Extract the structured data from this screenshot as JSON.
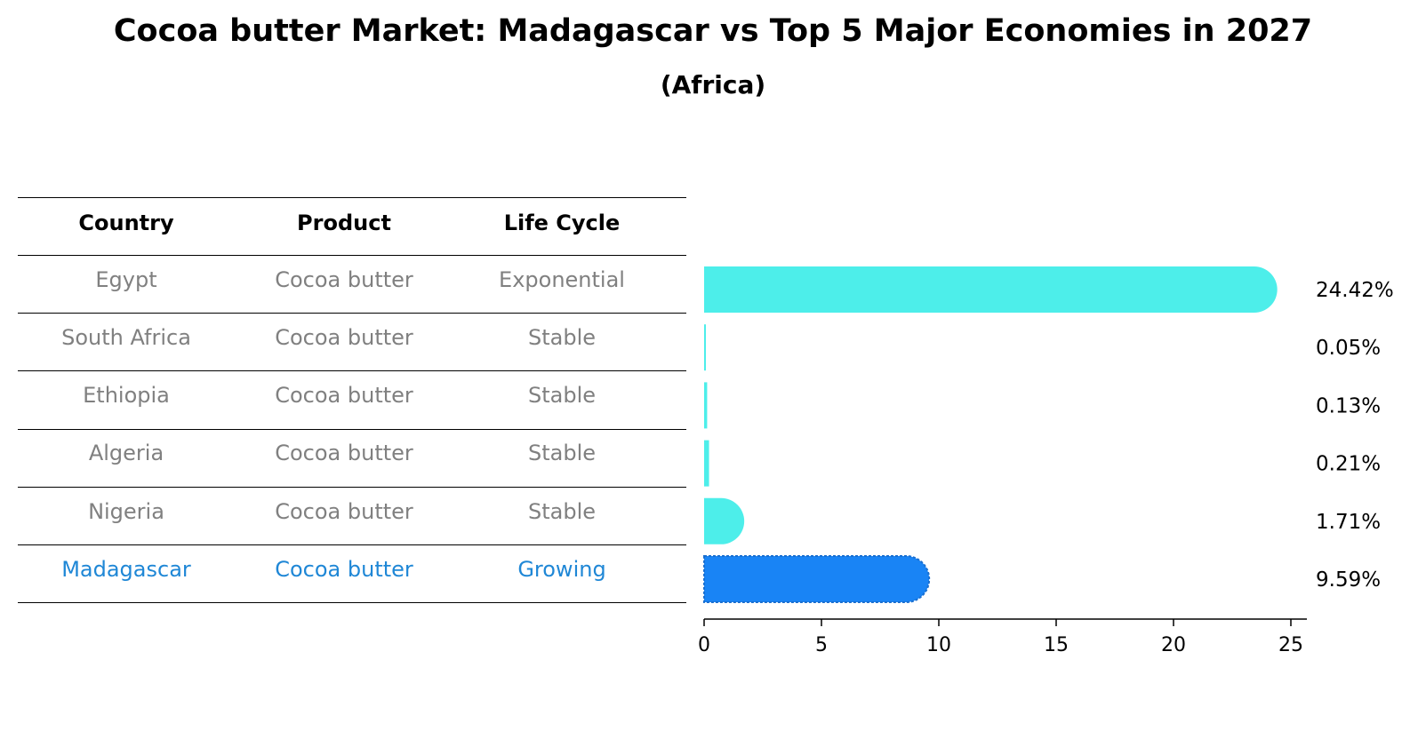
{
  "title": "Cocoa butter Market: Madagascar vs Top 5 Major Economies in 2027",
  "subtitle": "(Africa)",
  "table": {
    "headers": [
      "Country",
      "Product",
      "Life Cycle"
    ],
    "rows": [
      {
        "country": "Egypt",
        "product": "Cocoa butter",
        "life_cycle": "Exponential"
      },
      {
        "country": "South Africa",
        "product": "Cocoa butter",
        "life_cycle": "Stable"
      },
      {
        "country": "Ethiopia",
        "product": "Cocoa butter",
        "life_cycle": "Stable"
      },
      {
        "country": "Algeria",
        "product": "Cocoa butter",
        "life_cycle": "Stable"
      },
      {
        "country": "Nigeria",
        "product": "Cocoa butter",
        "life_cycle": "Stable"
      },
      {
        "country": "Madagascar",
        "product": "Cocoa butter",
        "life_cycle": "Growing"
      }
    ]
  },
  "colors": {
    "bar": "#4deeea",
    "highlight_bar": "#1984f5",
    "highlight_text": "#1f87d6",
    "muted_text": "#808080"
  },
  "chart_data": {
    "type": "bar",
    "orientation": "horizontal",
    "categories": [
      "Egypt",
      "South Africa",
      "Ethiopia",
      "Algeria",
      "Nigeria",
      "Madagascar"
    ],
    "values": [
      24.42,
      0.05,
      0.13,
      0.21,
      1.71,
      9.59
    ],
    "value_labels": [
      "24.42%",
      "0.05%",
      "0.13%",
      "0.21%",
      "1.71%",
      "9.59%"
    ],
    "highlight": "Madagascar",
    "xlim": [
      0,
      25.6
    ],
    "xticks": [
      0,
      5,
      10,
      15,
      20,
      25
    ],
    "grid": false
  }
}
